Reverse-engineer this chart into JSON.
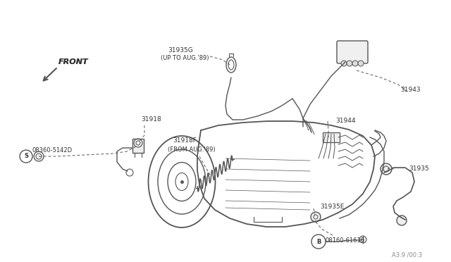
{
  "bg_color": "#ffffff",
  "line_color": "#555555",
  "text_color": "#333333",
  "figsize": [
    6.4,
    3.72
  ],
  "dpi": 100,
  "xlim": [
    0,
    640
  ],
  "ylim": [
    0,
    372
  ]
}
